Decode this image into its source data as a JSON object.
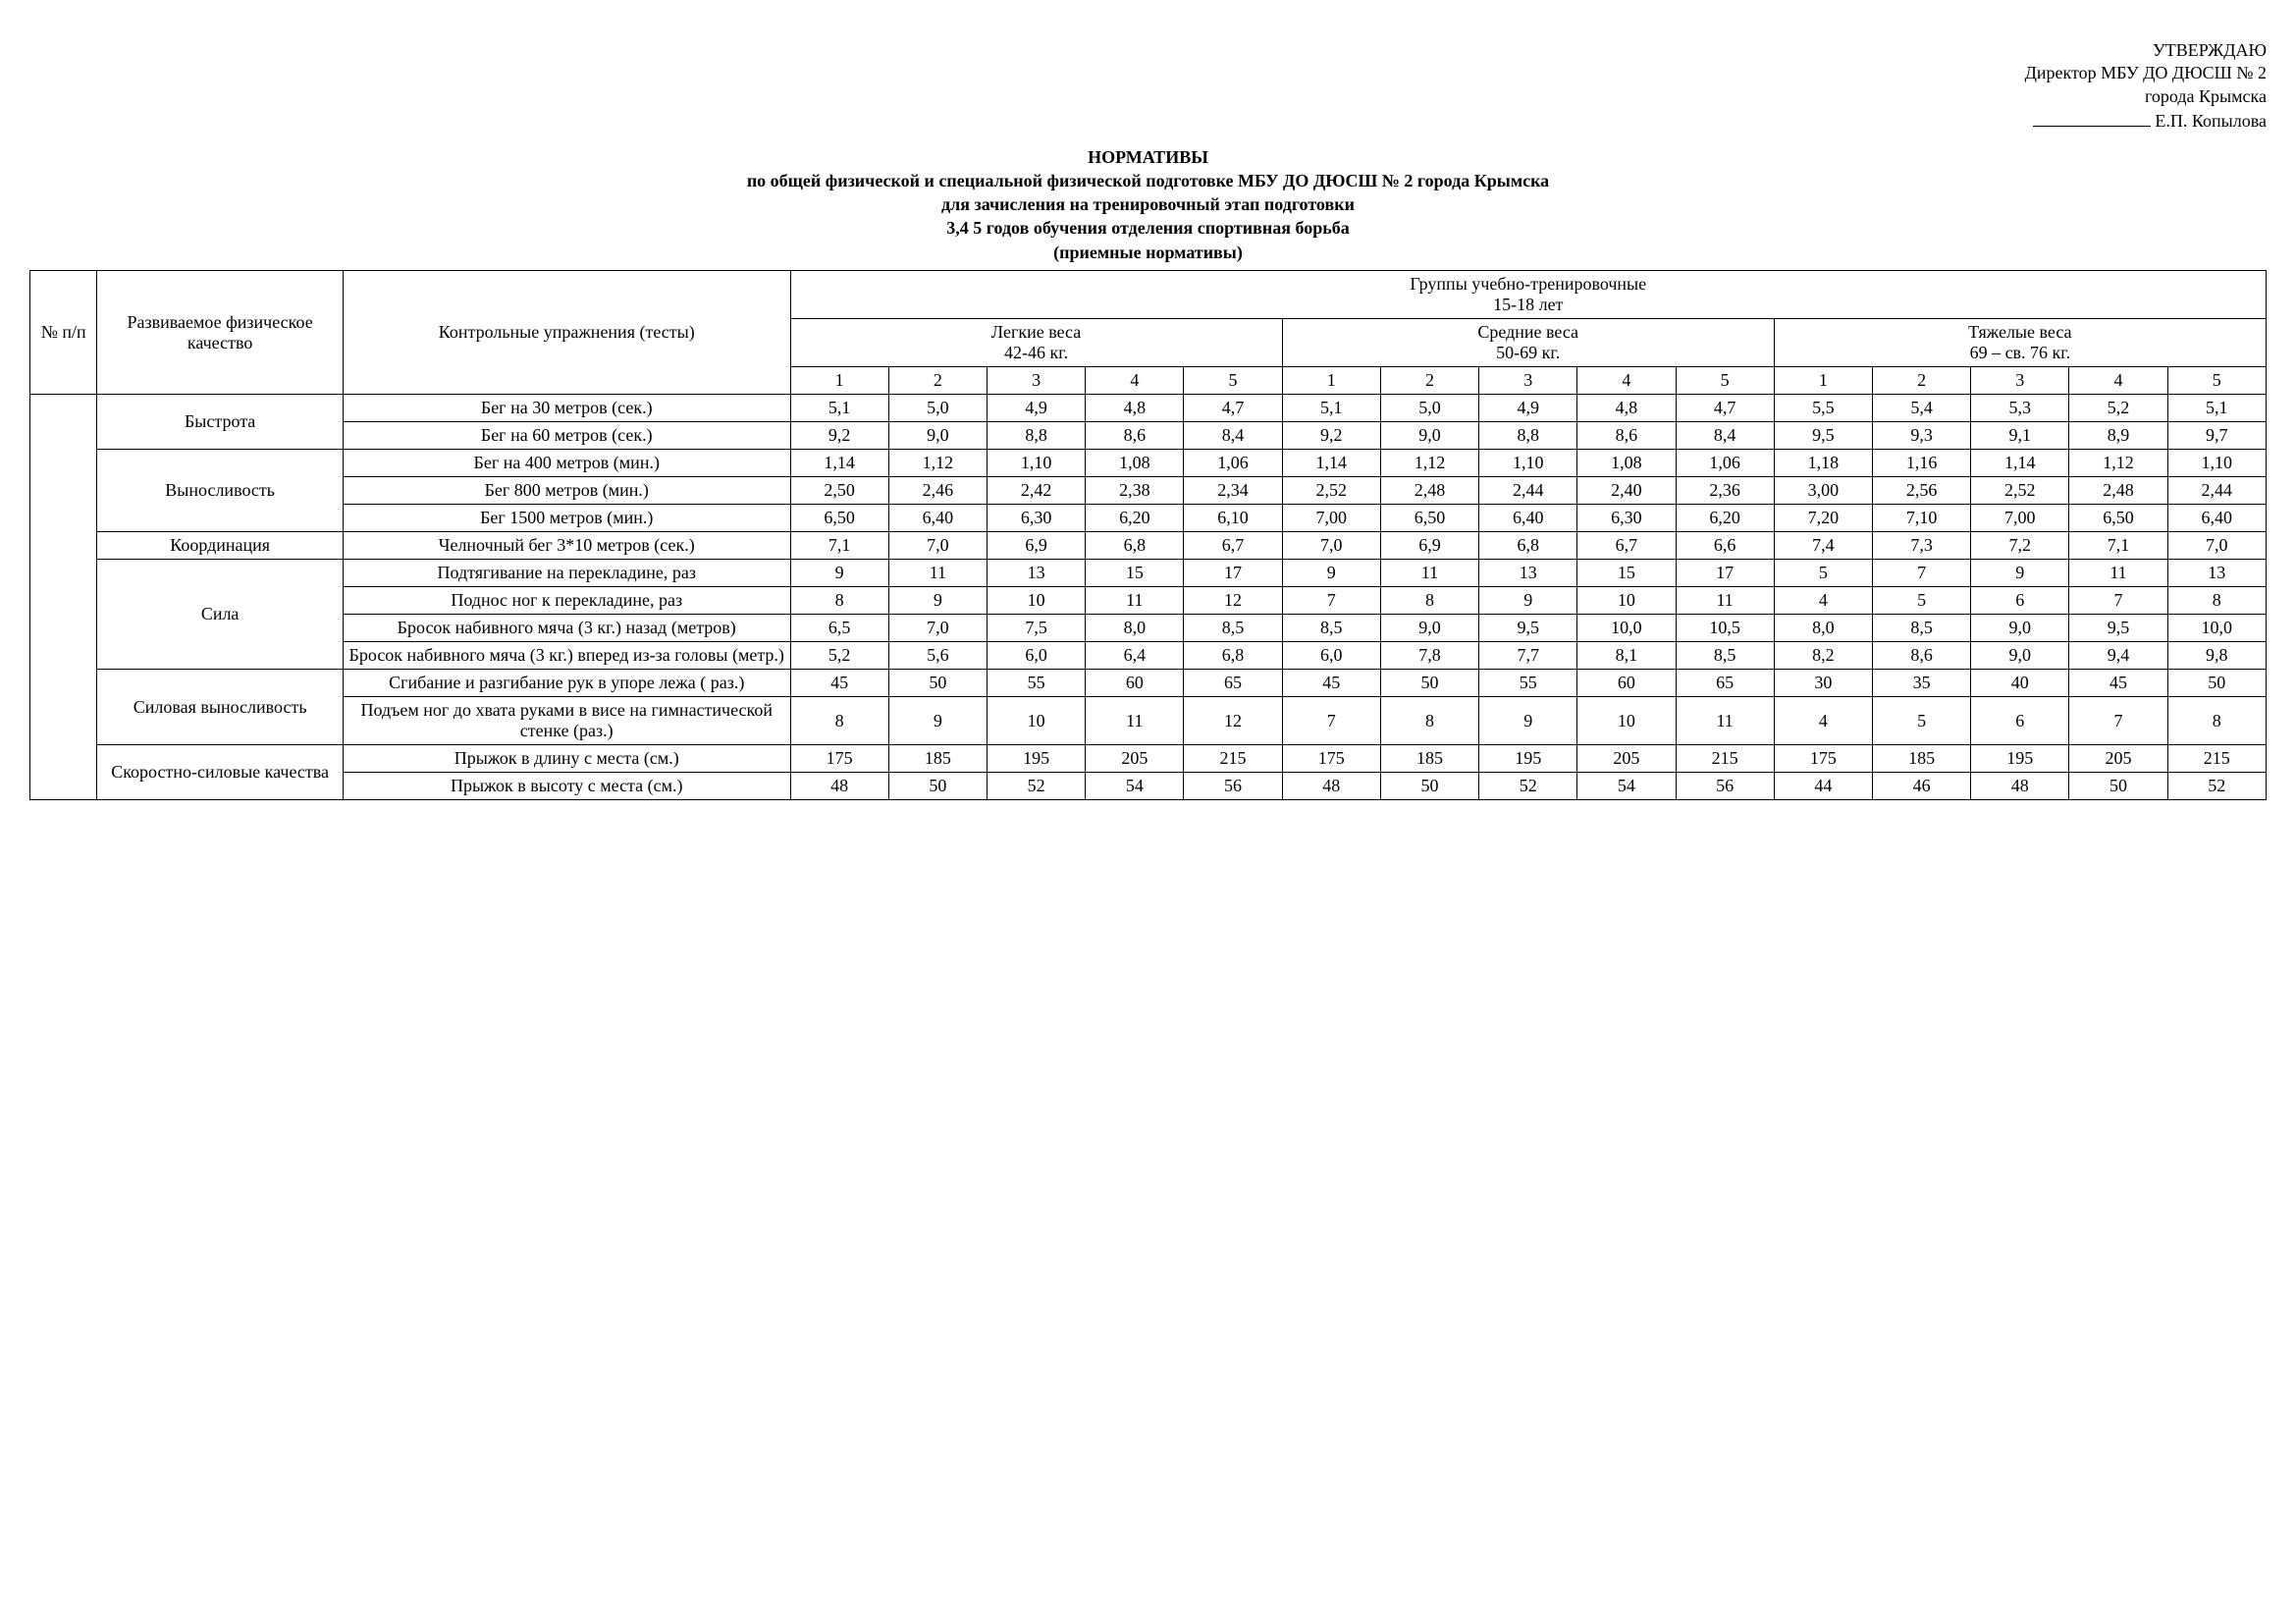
{
  "approval": {
    "confirm": "УТВЕРЖДАЮ",
    "position": "Директор МБУ ДО ДЮСШ № 2",
    "city": "города Крымска",
    "name": "Е.П. Копылова"
  },
  "title": {
    "l1": "НОРМАТИВЫ",
    "l2": "по общей физической и специальной физической подготовке МБУ ДО ДЮСШ № 2 города Крымска",
    "l3": "для зачисления на тренировочный этап подготовки",
    "l4": "3,4 5 годов обучения отделения спортивная борьба",
    "l5": "(приемные нормативы)"
  },
  "head": {
    "np": "№ п/п",
    "quality": "Развиваемое физическое качество",
    "test": "Контрольные упражнения (тесты)",
    "group_title": "Группы учебно-тренировочные",
    "age": "15-18 лет",
    "w1": "Легкие веса",
    "w1_sub": "42-46 кг.",
    "w2": "Средние веса",
    "w2_sub": "50-69 кг.",
    "w3": "Тяжелые веса",
    "w3_sub": "69 – св. 76 кг.",
    "n1": "1",
    "n2": "2",
    "n3": "3",
    "n4": "4",
    "n5": "5"
  },
  "qual": {
    "speed": "Быстрота",
    "endur": "Выносливость",
    "coord": "Координация",
    "power": "Сила",
    "power_endur": "Силовая выносливость",
    "speed_power": "Скоростно-силовые качества"
  },
  "tests": {
    "r30": "Бег на 30 метров (сек.)",
    "r60": "Бег на 60 метров (сек.)",
    "r400": "Бег на 400 метров (мин.)",
    "r800": "Бег  800 метров (мин.)",
    "r1500": "Бег 1500 метров (мин.)",
    "shuttle": "Челночный бег 3*10 метров (сек.)",
    "pullup": "Подтягивание на перекладине, раз",
    "legraise_bar": "Поднос ног к перекладине, раз",
    "ball_back": "Бросок набивного мяча (3 кг.) назад (метров)",
    "ball_fwd": "Бросок набивного мяча (3 кг.) вперед из-за головы (метр.)",
    "pushup": "Сгибание и разгибание рук в упоре лежа ( раз.)",
    "legraise_wall": "Подъем ног до хвата руками в висе на гимнастической стенке (раз.)",
    "long_jump": "Прыжок в длину с места (см.)",
    "high_jump": "Прыжок в высоту с места (см.)"
  },
  "vals": {
    "r30": [
      "5,1",
      "5,0",
      "4,9",
      "4,8",
      "4,7",
      "5,1",
      "5,0",
      "4,9",
      "4,8",
      "4,7",
      "5,5",
      "5,4",
      "5,3",
      "5,2",
      "5,1"
    ],
    "r60": [
      "9,2",
      "9,0",
      "8,8",
      "8,6",
      "8,4",
      "9,2",
      "9,0",
      "8,8",
      "8,6",
      "8,4",
      "9,5",
      "9,3",
      "9,1",
      "8,9",
      "9,7"
    ],
    "r400": [
      "1,14",
      "1,12",
      "1,10",
      "1,08",
      "1,06",
      "1,14",
      "1,12",
      "1,10",
      "1,08",
      "1,06",
      "1,18",
      "1,16",
      "1,14",
      "1,12",
      "1,10"
    ],
    "r800": [
      "2,50",
      "2,46",
      "2,42",
      "2,38",
      "2,34",
      "2,52",
      "2,48",
      "2,44",
      "2,40",
      "2,36",
      "3,00",
      "2,56",
      "2,52",
      "2,48",
      "2,44"
    ],
    "r1500": [
      "6,50",
      "6,40",
      "6,30",
      "6,20",
      "6,10",
      "7,00",
      "6,50",
      "6,40",
      "6,30",
      "6,20",
      "7,20",
      "7,10",
      "7,00",
      "6,50",
      "6,40"
    ],
    "shuttle": [
      "7,1",
      "7,0",
      "6,9",
      "6,8",
      "6,7",
      "7,0",
      "6,9",
      "6,8",
      "6,7",
      "6,6",
      "7,4",
      "7,3",
      "7,2",
      "7,1",
      "7,0"
    ],
    "pullup": [
      "9",
      "11",
      "13",
      "15",
      "17",
      "9",
      "11",
      "13",
      "15",
      "17",
      "5",
      "7",
      "9",
      "11",
      "13"
    ],
    "legraise_bar": [
      "8",
      "9",
      "10",
      "11",
      "12",
      "7",
      "8",
      "9",
      "10",
      "11",
      "4",
      "5",
      "6",
      "7",
      "8"
    ],
    "ball_back": [
      "6,5",
      "7,0",
      "7,5",
      "8,0",
      "8,5",
      "8,5",
      "9,0",
      "9,5",
      "10,0",
      "10,5",
      "8,0",
      "8,5",
      "9,0",
      "9,5",
      "10,0"
    ],
    "ball_fwd": [
      "5,2",
      "5,6",
      "6,0",
      "6,4",
      "6,8",
      "6,0",
      "7,8",
      "7,7",
      "8,1",
      "8,5",
      "8,2",
      "8,6",
      "9,0",
      "9,4",
      "9,8"
    ],
    "pushup": [
      "45",
      "50",
      "55",
      "60",
      "65",
      "45",
      "50",
      "55",
      "60",
      "65",
      "30",
      "35",
      "40",
      "45",
      "50"
    ],
    "legraise_wall": [
      "8",
      "9",
      "10",
      "11",
      "12",
      "7",
      "8",
      "9",
      "10",
      "11",
      "4",
      "5",
      "6",
      "7",
      "8"
    ],
    "long_jump": [
      "175",
      "185",
      "195",
      "205",
      "215",
      "175",
      "185",
      "195",
      "205",
      "215",
      "175",
      "185",
      "195",
      "205",
      "215"
    ],
    "high_jump": [
      "48",
      "50",
      "52",
      "54",
      "56",
      "48",
      "50",
      "52",
      "54",
      "56",
      "44",
      "46",
      "48",
      "50",
      "52"
    ]
  }
}
